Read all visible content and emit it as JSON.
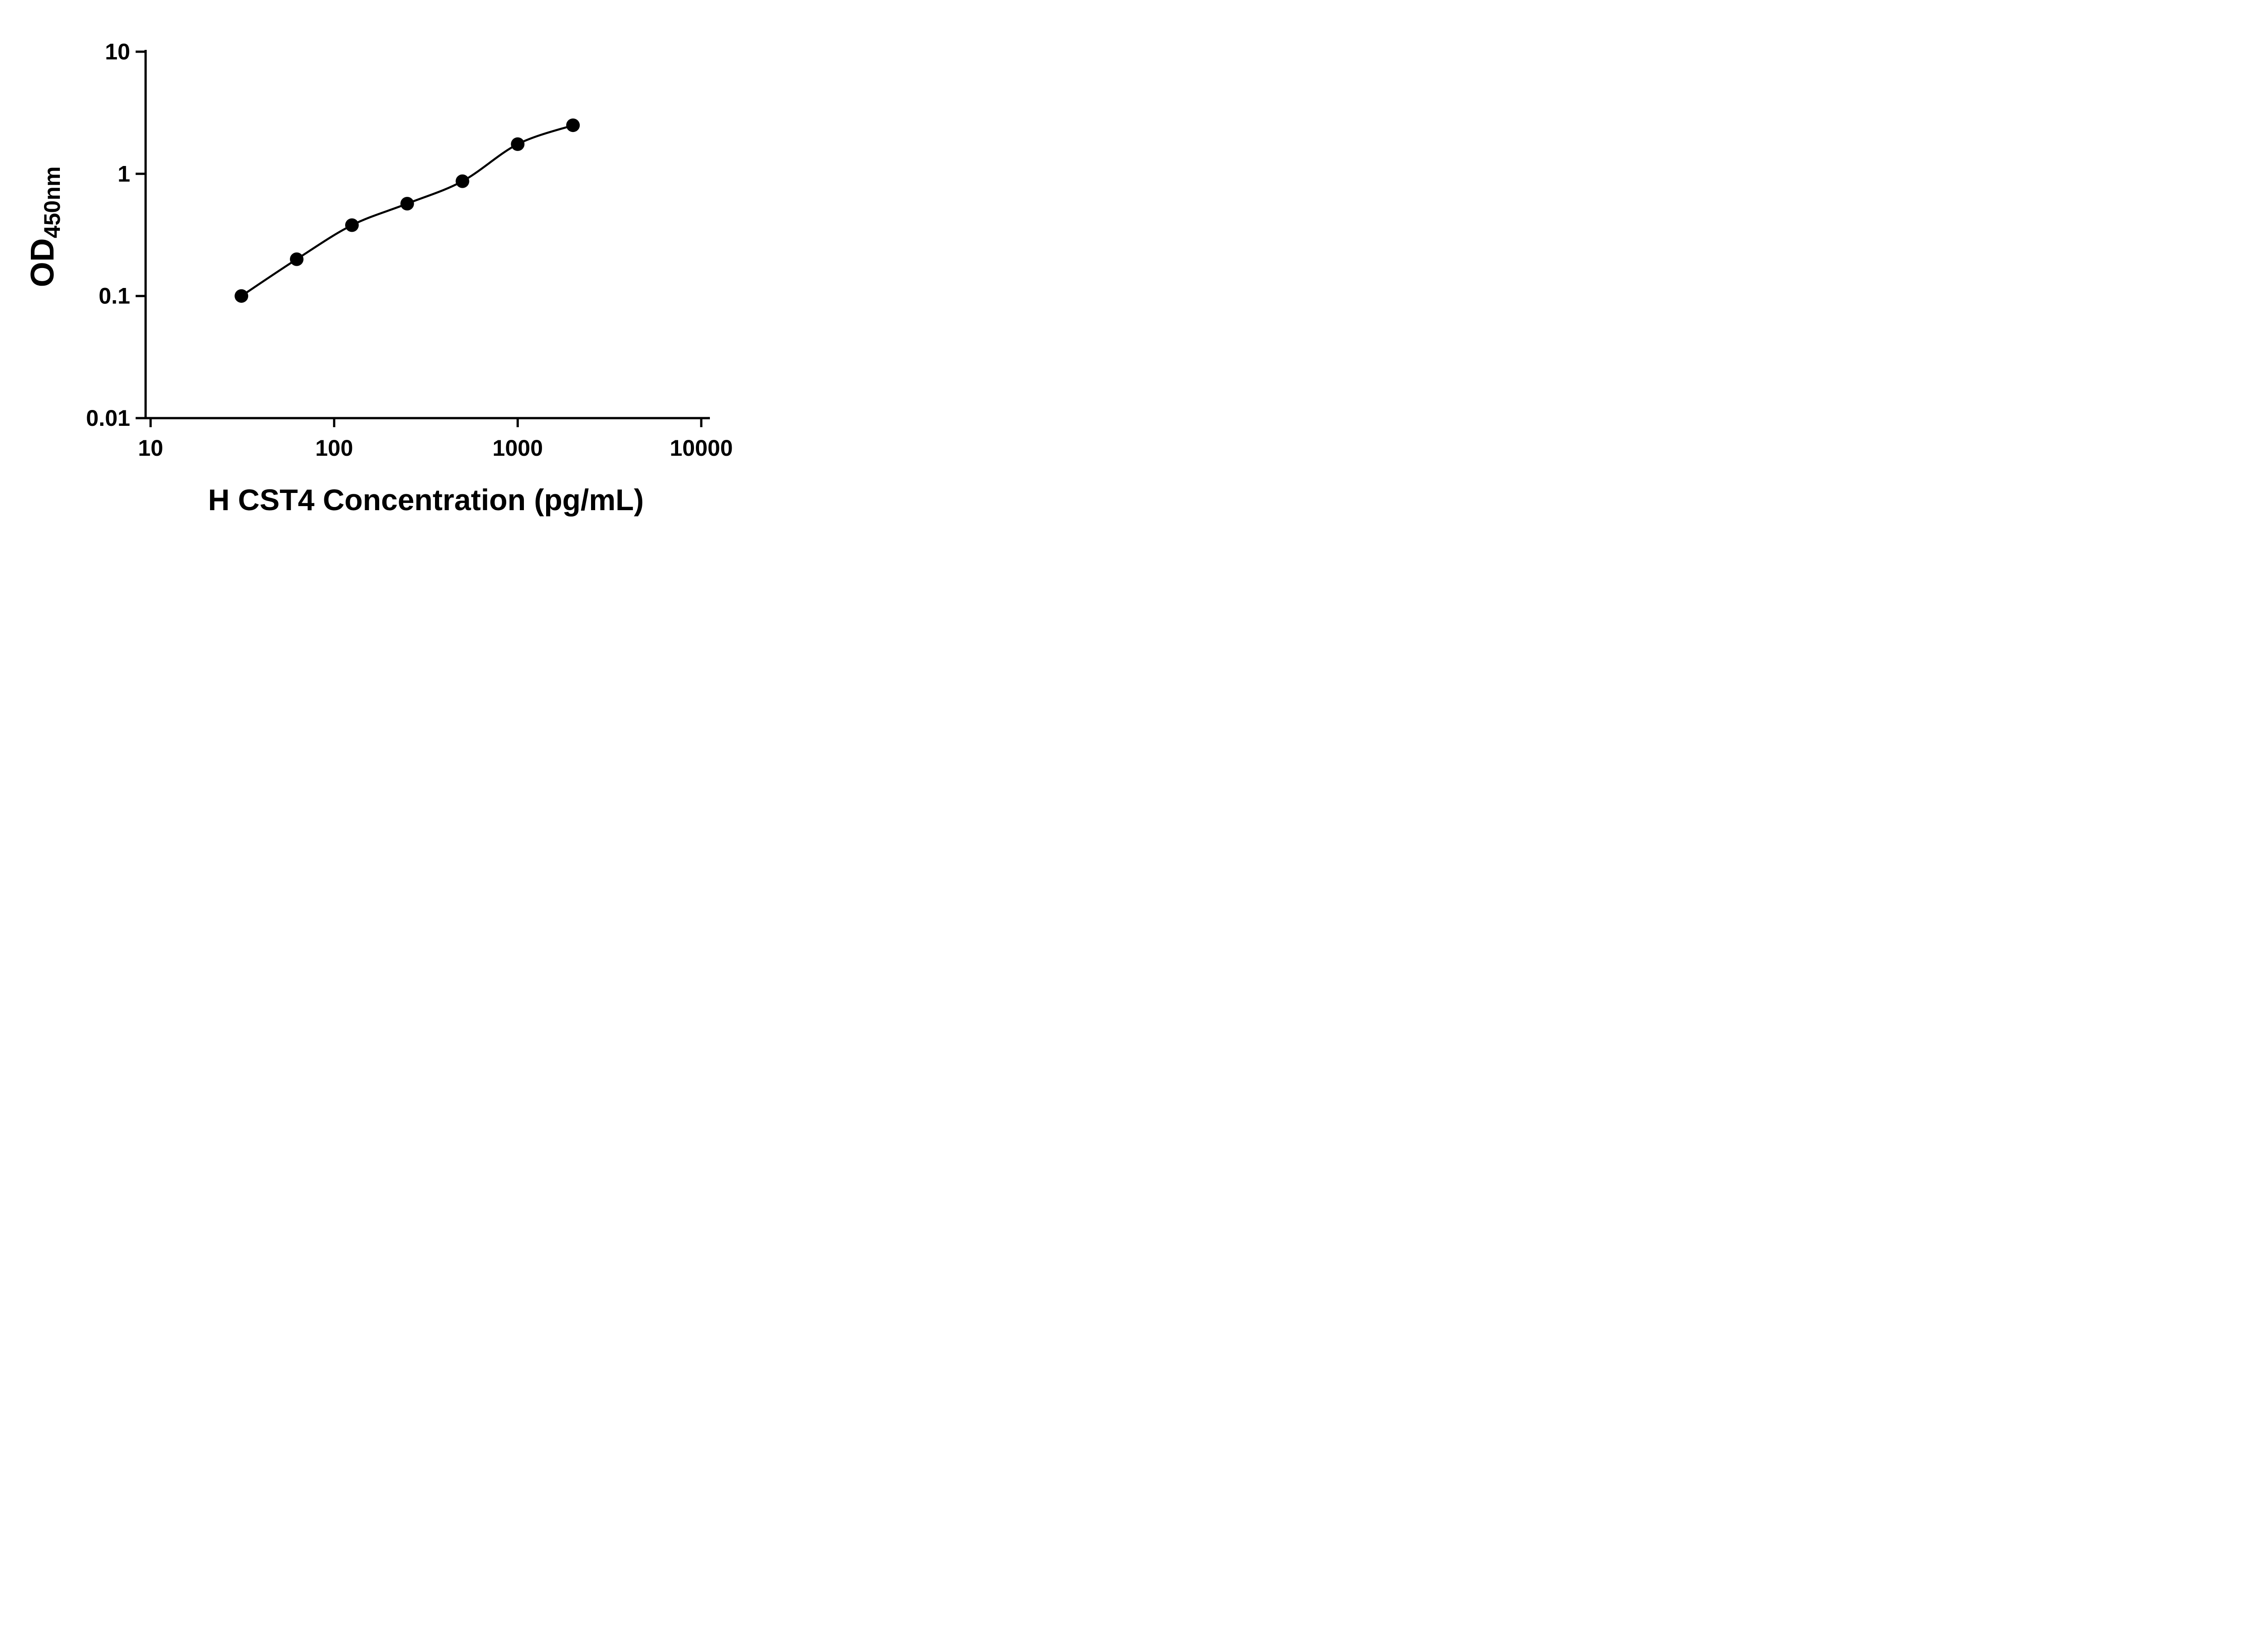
{
  "page": {
    "background_color": "#ffffff"
  },
  "style": {
    "axis_color": "#000000",
    "curve_color": "#000000",
    "marker_color": "#000000",
    "marker_radius": 15,
    "axis_stroke_width": 5,
    "curve_stroke_width": 4.5
  },
  "chart_data": {
    "type": "scatter",
    "curve": "smooth-fit-through-points",
    "grid": false,
    "legend": "none",
    "xlabel": "H CST4 Concentration (pg/mL)",
    "ylabel_main": "OD",
    "ylabel_sub": "450nm",
    "x_scale": "log10",
    "y_scale": "log10",
    "xlim": [
      10,
      10000
    ],
    "ylim": [
      0.01,
      10
    ],
    "x_ticks": {
      "values": [
        10,
        100,
        1000,
        10000
      ],
      "labels": [
        "10",
        "100",
        "1000",
        "10000"
      ]
    },
    "y_ticks": {
      "values": [
        10,
        1,
        0.1,
        0.01
      ],
      "labels": [
        "10",
        "1",
        "0.1",
        "0.01"
      ]
    },
    "series": [
      {
        "marker": "circle",
        "color": "#000000",
        "x": [
          31.25,
          62.5,
          125,
          250,
          500,
          1000,
          2000
        ],
        "y": [
          0.1,
          0.2,
          0.38,
          0.57,
          0.87,
          1.75,
          2.5
        ]
      }
    ]
  }
}
